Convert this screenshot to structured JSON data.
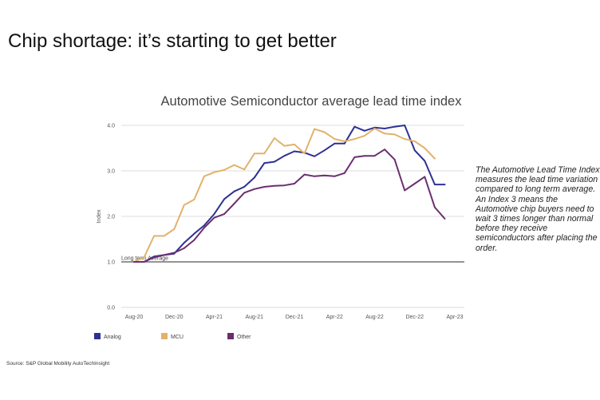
{
  "slide": {
    "title": "Chip shortage: it’s starting to get better",
    "note": "The Automotive Lead Time Index measures the lead time variation compared to long term average. An Index 3 means the Automotive chip buyers need to wait 3 times longer than normal before they receive semiconductors after placing the order.",
    "source": "Source: S&P Global Mobility AutoTechInsight"
  },
  "chart_data": {
    "type": "line",
    "title": "Automotive Semiconductor average lead time index",
    "ylabel": "Index",
    "xlabel": "",
    "ylim": [
      0,
      4
    ],
    "y_ticks": [
      "0.0",
      "1.0",
      "2.0",
      "3.0",
      "4.0"
    ],
    "x_tick_labels": [
      "Aug-20",
      "Dec-20",
      "Apr-21",
      "Aug-21",
      "Dec-21",
      "Apr-22",
      "Aug-22",
      "Dec-22",
      "Apr-23"
    ],
    "x": [
      "Aug-20",
      "Sep-20",
      "Oct-20",
      "Nov-20",
      "Dec-20",
      "Jan-21",
      "Feb-21",
      "Mar-21",
      "Apr-21",
      "May-21",
      "Jun-21",
      "Jul-21",
      "Aug-21",
      "Sep-21",
      "Oct-21",
      "Nov-21",
      "Dec-21",
      "Jan-22",
      "Feb-22",
      "Mar-22",
      "Apr-22",
      "May-22",
      "Jun-22",
      "Jul-22",
      "Aug-22",
      "Sep-22",
      "Oct-22",
      "Nov-22",
      "Dec-22",
      "Jan-23",
      "Feb-23",
      "Mar-23",
      "Apr-23"
    ],
    "series": [
      {
        "name": "Analog",
        "color": "#2e3192",
        "values": [
          1.0,
          1.0,
          1.12,
          1.15,
          1.18,
          1.42,
          1.62,
          1.8,
          2.05,
          2.38,
          2.55,
          2.65,
          2.85,
          3.17,
          3.2,
          3.33,
          3.43,
          3.4,
          3.32,
          3.45,
          3.6,
          3.6,
          3.97,
          3.88,
          3.95,
          3.93,
          3.97,
          4.0,
          3.45,
          3.22,
          2.7,
          2.7,
          null
        ]
      },
      {
        "name": "MCU",
        "color": "#e2b26b",
        "values": [
          1.0,
          1.1,
          1.57,
          1.57,
          1.72,
          2.25,
          2.37,
          2.88,
          2.97,
          3.02,
          3.13,
          3.03,
          3.38,
          3.38,
          3.72,
          3.55,
          3.58,
          3.38,
          3.92,
          3.85,
          3.7,
          3.65,
          3.7,
          3.77,
          3.93,
          3.82,
          3.8,
          3.7,
          3.65,
          3.5,
          3.27,
          null,
          null
        ]
      },
      {
        "name": "Other",
        "color": "#6b2e6f",
        "values": [
          1.0,
          1.0,
          1.1,
          1.15,
          1.2,
          1.3,
          1.48,
          1.75,
          1.97,
          2.05,
          2.28,
          2.52,
          2.6,
          2.65,
          2.67,
          2.68,
          2.72,
          2.92,
          2.88,
          2.9,
          2.88,
          2.95,
          3.3,
          3.33,
          3.33,
          3.47,
          3.25,
          2.57,
          2.72,
          2.87,
          2.2,
          1.95,
          null
        ]
      }
    ],
    "reference_line": {
      "label": "Long term Average",
      "value": 1.0
    },
    "grid": true,
    "legend_position": "bottom-left"
  }
}
